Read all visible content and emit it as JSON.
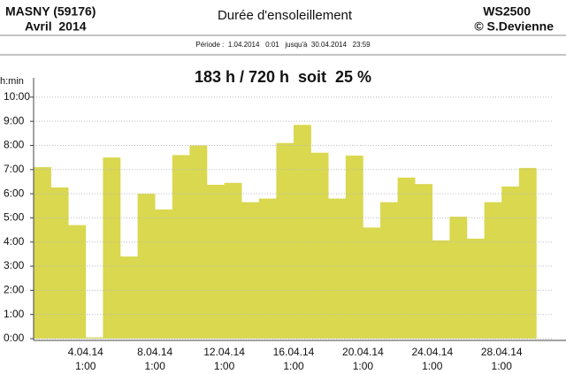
{
  "chart_data": {
    "type": "bar",
    "station": "MASNY (59176)",
    "period_name": "Avril  2014",
    "title": "Durée d'ensoleillement",
    "device": "WS2500",
    "author": "© S.Devienne",
    "period": "Période :  1.04.2014   0:01   jusqu'à  30.04.2014   23:59",
    "annotation": "183 h / 720 h  soit  25 %",
    "ylabel": "h:min",
    "color": "#d9d84f",
    "categories": [
      null,
      null,
      null,
      "4.04.14|1:00",
      null,
      null,
      null,
      "8.04.14|1:00",
      null,
      null,
      null,
      "12.04.14|1:00",
      null,
      null,
      null,
      "16.04.14|1:00",
      null,
      null,
      null,
      "20.04.14|1:00",
      null,
      null,
      null,
      "24.04.14|1:00",
      null,
      null,
      null,
      "28.04.14|1:00",
      null,
      null
    ],
    "values": [
      7.1,
      6.26,
      4.7,
      0.05,
      7.5,
      3.4,
      6.0,
      5.35,
      7.6,
      8.0,
      6.37,
      6.45,
      5.65,
      5.8,
      8.1,
      8.85,
      7.7,
      5.8,
      7.58,
      4.6,
      5.65,
      6.67,
      6.4,
      4.07,
      5.05,
      4.14,
      5.65,
      6.3,
      7.07,
      null
    ],
    "ylim": [
      0,
      10.8
    ],
    "yticks": [
      {
        "value": 0,
        "label": "0:00"
      },
      {
        "value": 1,
        "label": "1:00"
      },
      {
        "value": 2,
        "label": "2:00"
      },
      {
        "value": 3,
        "label": "3:00"
      },
      {
        "value": 4,
        "label": "4:00"
      },
      {
        "value": 5,
        "label": "5:00"
      },
      {
        "value": 6,
        "label": "6:00"
      },
      {
        "value": 7,
        "label": "7:00"
      },
      {
        "value": 8,
        "label": "8:00"
      },
      {
        "value": 9,
        "label": "9:00"
      },
      {
        "value": 10,
        "label": "10:00"
      }
    ],
    "grid": true
  }
}
